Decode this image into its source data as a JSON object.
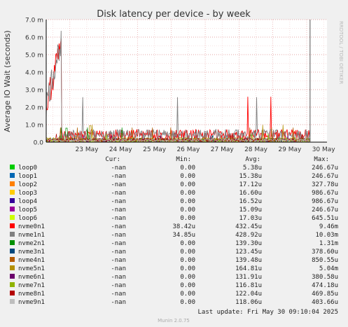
{
  "chart_data": {
    "type": "line",
    "title": "Disk latency per device - by week",
    "ylabel": "Average IO Wait (seconds)",
    "watermark": "RRDTOOL / TOBI OETIKER",
    "y_ticks": [
      "0.0",
      "1.0 m",
      "2.0 m",
      "3.0 m",
      "4.0 m",
      "5.0 m",
      "6.0 m",
      "7.0 m"
    ],
    "ylim": [
      0,
      7.0
    ],
    "y_unit": "ms",
    "x_ticks": [
      "23 May",
      "24 May",
      "25 May",
      "26 May",
      "27 May",
      "28 May",
      "29 May",
      "30 May"
    ],
    "x_range_days": [
      22.3,
      30.6
    ],
    "now_marker_day": 30.1,
    "legend_headers": {
      "cur": "Cur:",
      "min": "Min:",
      "avg": "Avg:",
      "max": "Max:"
    },
    "series": [
      {
        "name": "loop0",
        "color": "#00cc00",
        "cur": "-nan",
        "min": "0.00",
        "avg": "5.38u",
        "max": "246.67u"
      },
      {
        "name": "loop1",
        "color": "#0066b3",
        "cur": "-nan",
        "min": "0.00",
        "avg": "15.38u",
        "max": "246.67u"
      },
      {
        "name": "loop2",
        "color": "#ff8000",
        "cur": "-nan",
        "min": "0.00",
        "avg": "17.12u",
        "max": "327.78u"
      },
      {
        "name": "loop3",
        "color": "#ffcc00",
        "cur": "-nan",
        "min": "0.00",
        "avg": "16.60u",
        "max": "986.67u"
      },
      {
        "name": "loop4",
        "color": "#330099",
        "cur": "-nan",
        "min": "0.00",
        "avg": "16.52u",
        "max": "986.67u"
      },
      {
        "name": "loop5",
        "color": "#990099",
        "cur": "-nan",
        "min": "0.00",
        "avg": "15.09u",
        "max": "246.67u"
      },
      {
        "name": "loop6",
        "color": "#ccff00",
        "cur": "-nan",
        "min": "0.00",
        "avg": "17.03u",
        "max": "645.51u"
      },
      {
        "name": "nvme0n1",
        "color": "#ff0000",
        "cur": "-nan",
        "min": "38.42u",
        "avg": "432.45u",
        "max": "9.46m"
      },
      {
        "name": "nvme1n1",
        "color": "#808080",
        "cur": "-nan",
        "min": "34.85u",
        "avg": "428.92u",
        "max": "10.03m"
      },
      {
        "name": "nvme2n1",
        "color": "#008f00",
        "cur": "-nan",
        "min": "0.00",
        "avg": "139.30u",
        "max": "1.31m"
      },
      {
        "name": "nvme3n1",
        "color": "#00487d",
        "cur": "-nan",
        "min": "0.00",
        "avg": "123.45u",
        "max": "378.60u"
      },
      {
        "name": "nvme4n1",
        "color": "#b35a00",
        "cur": "-nan",
        "min": "0.00",
        "avg": "139.48u",
        "max": "850.55u"
      },
      {
        "name": "nvme5n1",
        "color": "#b38f00",
        "cur": "-nan",
        "min": "0.00",
        "avg": "164.81u",
        "max": "5.04m"
      },
      {
        "name": "nvme6n1",
        "color": "#6b006b",
        "cur": "-nan",
        "min": "0.00",
        "avg": "131.91u",
        "max": "380.58u"
      },
      {
        "name": "nvme7n1",
        "color": "#8fb300",
        "cur": "-nan",
        "min": "0.00",
        "avg": "116.81u",
        "max": "474.18u"
      },
      {
        "name": "nvme8n1",
        "color": "#b30000",
        "cur": "-nan",
        "min": "0.00",
        "avg": "122.04u",
        "max": "469.85u"
      },
      {
        "name": "nvme9n1",
        "color": "#bebebe",
        "cur": "-nan",
        "min": "0.00",
        "avg": "118.06u",
        "max": "403.66u"
      }
    ],
    "last_update": "Last update: Fri May 30 09:10:04 2025",
    "footer": "Munin 2.0.75"
  }
}
